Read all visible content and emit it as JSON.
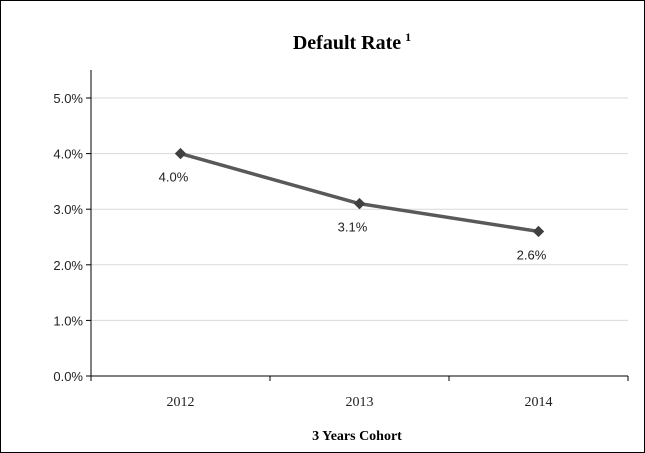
{
  "chart_data": {
    "type": "line",
    "title": "Default Rate",
    "title_superscript": "1",
    "xlabel": "3 Years Cohort",
    "ylabel": "",
    "categories": [
      "2012",
      "2013",
      "2014"
    ],
    "series": [
      {
        "values": [
          4.0,
          3.1,
          2.6
        ],
        "color": "#595959"
      }
    ],
    "data_labels": [
      "4.0%",
      "3.1%",
      "2.6%"
    ],
    "ylim": [
      0,
      5
    ],
    "yticks": [
      0,
      1,
      2,
      3,
      4,
      5
    ],
    "ytick_labels": [
      "0.0%",
      "1.0%",
      "2.0%",
      "3.0%",
      "4.0%",
      "5.0%"
    ],
    "grid": true,
    "legend": "none",
    "gridline_color": "#d9d9d9",
    "axis_color": "#000000"
  }
}
